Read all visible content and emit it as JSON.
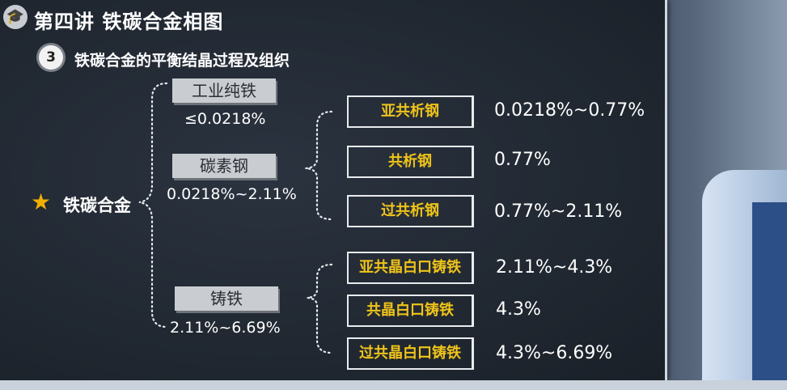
{
  "header": {
    "title": "第四讲  铁碳合金相图",
    "section_number": "3",
    "subtitle": "铁碳合金的平衡结晶过程及组织"
  },
  "root": {
    "label": "铁碳合金"
  },
  "categories": [
    {
      "name": "工业纯铁",
      "range": "≤0.0218%"
    },
    {
      "name": "碳素钢",
      "range": "0.0218%~2.11%"
    },
    {
      "name": "铸铁",
      "range": "2.11%~6.69%"
    }
  ],
  "steel_types": [
    {
      "name": "亚共析钢",
      "range": "0.0218%~0.77%"
    },
    {
      "name": "共析钢",
      "range": "0.77%"
    },
    {
      "name": "过共析钢",
      "range": "0.77%~2.11%"
    }
  ],
  "cast_iron_types": [
    {
      "name": "亚共晶白口铸铁",
      "range": "2.11%~4.3%"
    },
    {
      "name": "共晶白口铸铁",
      "range": "4.3%"
    },
    {
      "name": "过共晶白口铸铁",
      "range": "4.3%~6.69%"
    }
  ],
  "colors": {
    "box_text": "#f0c419",
    "star": "#f0b000",
    "board": "#1f262f"
  }
}
